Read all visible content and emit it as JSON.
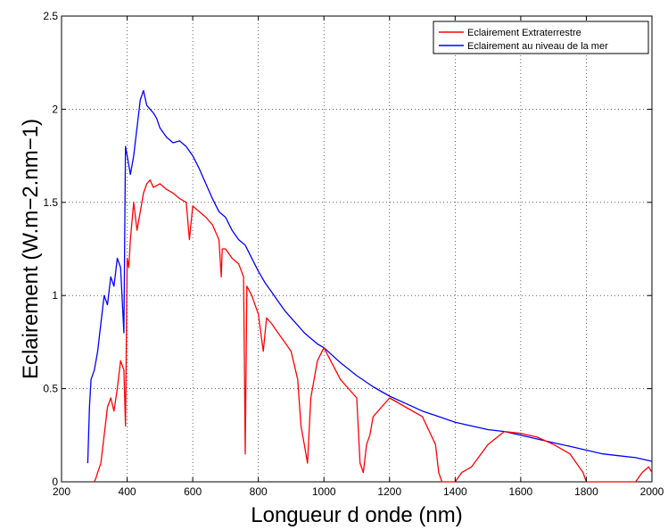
{
  "chart_data": {
    "type": "line",
    "title": "",
    "xlabel": "Longueur d onde (nm)",
    "ylabel": "Eclairement (W.m−2.nm−1)",
    "xlim": [
      200,
      2000
    ],
    "ylim": [
      0,
      2.5
    ],
    "xticks": [
      "200",
      "400",
      "600",
      "800",
      "1000",
      "1200",
      "1400",
      "1600",
      "1800",
      "2000"
    ],
    "yticks": [
      "0",
      "0.5",
      "1",
      "1.5",
      "2",
      "2.5"
    ],
    "grid": true,
    "legend_position": "top-right",
    "series": [
      {
        "name": "Eclairement au niveau de la mer",
        "color": "#0000ff",
        "x": [
          280,
          285,
          290,
          300,
          310,
          320,
          330,
          340,
          350,
          360,
          370,
          380,
          390,
          395,
          400,
          410,
          420,
          430,
          440,
          450,
          460,
          470,
          480,
          490,
          500,
          520,
          540,
          560,
          580,
          600,
          620,
          640,
          660,
          680,
          700,
          720,
          740,
          760,
          780,
          800,
          820,
          840,
          860,
          880,
          900,
          920,
          940,
          960,
          980,
          1000,
          1050,
          1100,
          1150,
          1200,
          1250,
          1300,
          1350,
          1400,
          1450,
          1500,
          1550,
          1600,
          1650,
          1700,
          1750,
          1800,
          1850,
          1900,
          1950,
          2000
        ],
        "y": [
          0.1,
          0.4,
          0.55,
          0.6,
          0.7,
          0.85,
          1.0,
          0.95,
          1.1,
          1.05,
          1.2,
          1.15,
          0.8,
          1.8,
          1.75,
          1.65,
          1.75,
          1.9,
          2.05,
          2.1,
          2.02,
          2.0,
          1.98,
          1.95,
          1.9,
          1.85,
          1.82,
          1.83,
          1.8,
          1.75,
          1.68,
          1.6,
          1.52,
          1.45,
          1.42,
          1.35,
          1.3,
          1.27,
          1.2,
          1.13,
          1.07,
          1.02,
          0.97,
          0.92,
          0.88,
          0.84,
          0.8,
          0.77,
          0.74,
          0.72,
          0.64,
          0.57,
          0.51,
          0.46,
          0.42,
          0.38,
          0.35,
          0.32,
          0.3,
          0.28,
          0.27,
          0.25,
          0.23,
          0.21,
          0.19,
          0.17,
          0.15,
          0.14,
          0.13,
          0.11
        ]
      },
      {
        "name": "Eclairement Extraterrestre",
        "color": "#ff0000",
        "x": [
          300,
          305,
          310,
          320,
          330,
          340,
          350,
          360,
          370,
          380,
          390,
          395,
          400,
          405,
          410,
          420,
          430,
          440,
          450,
          460,
          470,
          480,
          500,
          520,
          540,
          560,
          580,
          590,
          600,
          620,
          640,
          660,
          680,
          687,
          690,
          700,
          720,
          740,
          755,
          760,
          765,
          780,
          800,
          815,
          825,
          840,
          860,
          880,
          900,
          920,
          930,
          940,
          950,
          960,
          980,
          1000,
          1050,
          1100,
          1110,
          1120,
          1130,
          1140,
          1150,
          1200,
          1250,
          1300,
          1340,
          1350,
          1360,
          1380,
          1400,
          1420,
          1450,
          1500,
          1550,
          1600,
          1650,
          1700,
          1750,
          1790,
          1800,
          1850,
          1900,
          1950,
          1970,
          1990,
          2000
        ],
        "y": [
          0.0,
          0.02,
          0.05,
          0.1,
          0.25,
          0.4,
          0.45,
          0.38,
          0.5,
          0.65,
          0.6,
          0.3,
          1.2,
          1.15,
          1.3,
          1.5,
          1.35,
          1.45,
          1.55,
          1.6,
          1.62,
          1.58,
          1.6,
          1.57,
          1.55,
          1.52,
          1.5,
          1.3,
          1.48,
          1.45,
          1.42,
          1.38,
          1.3,
          1.1,
          1.25,
          1.25,
          1.2,
          1.17,
          1.1,
          0.15,
          1.05,
          1.0,
          0.9,
          0.7,
          0.88,
          0.85,
          0.8,
          0.75,
          0.7,
          0.55,
          0.3,
          0.2,
          0.1,
          0.45,
          0.65,
          0.72,
          0.55,
          0.45,
          0.1,
          0.05,
          0.2,
          0.25,
          0.35,
          0.45,
          0.4,
          0.35,
          0.2,
          0.05,
          0.0,
          0.0,
          0.0,
          0.05,
          0.08,
          0.2,
          0.27,
          0.26,
          0.24,
          0.2,
          0.15,
          0.05,
          0.0,
          0.0,
          0.0,
          0.0,
          0.05,
          0.08,
          0.05
        ]
      }
    ]
  }
}
